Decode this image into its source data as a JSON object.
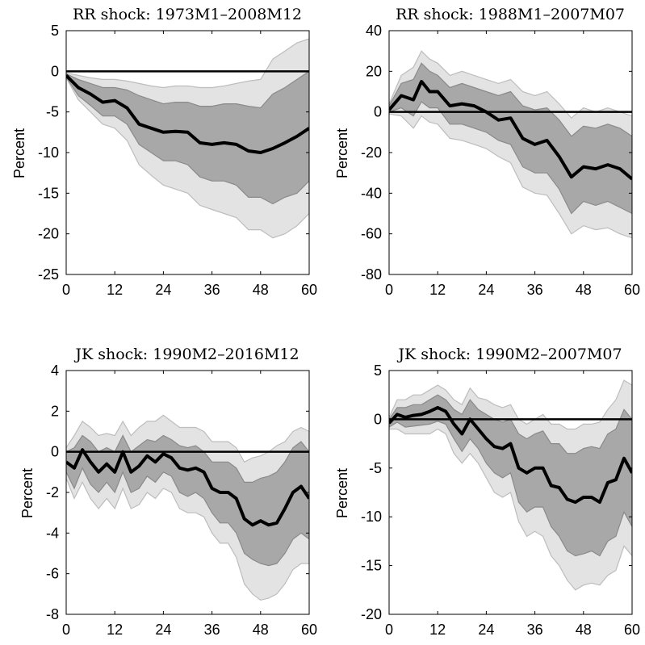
{
  "chart_data": [
    {
      "type": "line",
      "title": "RR shock: 1973M1–2008M12",
      "ylabel": "Percent",
      "xlabel": "",
      "xlim": [
        0,
        60
      ],
      "ylim": [
        -25,
        5
      ],
      "xticks": [
        0,
        12,
        24,
        36,
        48,
        60
      ],
      "yticks": [
        5,
        0,
        -5,
        -10,
        -15,
        -20,
        -25
      ],
      "zero_line": true,
      "x": [
        0,
        3,
        6,
        9,
        12,
        15,
        18,
        21,
        24,
        27,
        30,
        33,
        36,
        39,
        42,
        45,
        48,
        51,
        54,
        57,
        60
      ],
      "series": [
        {
          "role": "point_estimate",
          "values": [
            -0.5,
            -2.0,
            -2.8,
            -3.8,
            -3.6,
            -4.5,
            -6.5,
            -7.0,
            -7.5,
            -7.4,
            -7.5,
            -8.8,
            -9.0,
            -8.8,
            -9.0,
            -9.8,
            -10.0,
            -9.5,
            -8.8,
            -8.0,
            -7.0
          ]
        },
        {
          "role": "inner_band_upper",
          "values": [
            -0.3,
            -1.0,
            -1.5,
            -2.0,
            -2.0,
            -2.3,
            -3.0,
            -3.5,
            -4.0,
            -3.8,
            -3.8,
            -4.3,
            -4.3,
            -4.0,
            -4.0,
            -4.3,
            -4.5,
            -2.8,
            -2.0,
            -1.0,
            0.0
          ]
        },
        {
          "role": "inner_band_lower",
          "values": [
            -0.7,
            -3.0,
            -4.2,
            -5.5,
            -5.5,
            -6.5,
            -9.0,
            -10.0,
            -11.0,
            -11.0,
            -11.5,
            -13.0,
            -13.5,
            -13.5,
            -14.0,
            -15.5,
            -15.5,
            -16.3,
            -15.5,
            -15.0,
            -13.5
          ]
        },
        {
          "role": "outer_band_upper",
          "values": [
            -0.2,
            -0.5,
            -0.8,
            -1.0,
            -1.0,
            -1.2,
            -1.5,
            -1.8,
            -2.0,
            -1.8,
            -1.8,
            -2.0,
            -2.0,
            -1.8,
            -1.5,
            -1.2,
            -1.0,
            1.5,
            2.5,
            3.5,
            4.0
          ]
        },
        {
          "role": "outer_band_lower",
          "values": [
            -0.8,
            -3.5,
            -5.0,
            -6.5,
            -7.0,
            -8.5,
            -11.5,
            -12.8,
            -14.0,
            -14.5,
            -15.0,
            -16.5,
            -17.0,
            -17.5,
            -18.0,
            -19.5,
            -19.5,
            -20.5,
            -20.0,
            -19.0,
            -17.5
          ]
        }
      ]
    },
    {
      "type": "line",
      "title": "RR shock: 1988M1–2007M07",
      "ylabel": "Percent",
      "xlabel": "",
      "xlim": [
        0,
        60
      ],
      "ylim": [
        -80,
        40
      ],
      "xticks": [
        0,
        12,
        24,
        36,
        48,
        60
      ],
      "yticks": [
        40,
        20,
        0,
        -20,
        -40,
        -60,
        -80
      ],
      "zero_line": true,
      "x": [
        0,
        3,
        6,
        8,
        10,
        12,
        15,
        18,
        21,
        24,
        27,
        30,
        33,
        36,
        39,
        42,
        45,
        48,
        51,
        54,
        57,
        60
      ],
      "series": [
        {
          "role": "point_estimate",
          "values": [
            1,
            8,
            6,
            15,
            10,
            10,
            3,
            4,
            3,
            0,
            -4,
            -3,
            -13,
            -16,
            -14,
            -22,
            -32,
            -27,
            -28,
            -26,
            -28,
            -33
          ]
        },
        {
          "role": "inner_band_upper",
          "values": [
            3,
            14,
            16,
            24,
            20,
            18,
            12,
            14,
            12,
            10,
            8,
            10,
            3,
            1,
            2,
            -4,
            -12,
            -7,
            -8,
            -6,
            -8,
            -12
          ]
        },
        {
          "role": "inner_band_lower",
          "values": [
            0,
            2,
            -2,
            5,
            2,
            2,
            -6,
            -6,
            -8,
            -10,
            -14,
            -16,
            -27,
            -30,
            -30,
            -38,
            -50,
            -44,
            -46,
            -44,
            -47,
            -50
          ]
        },
        {
          "role": "outer_band_upper",
          "values": [
            4,
            18,
            22,
            30,
            26,
            24,
            18,
            20,
            18,
            16,
            14,
            16,
            10,
            8,
            10,
            4,
            -3,
            2,
            0,
            2,
            0,
            -2
          ]
        },
        {
          "role": "outer_band_lower",
          "values": [
            -1,
            -2,
            -8,
            -2,
            -5,
            -6,
            -13,
            -14,
            -16,
            -18,
            -22,
            -25,
            -37,
            -40,
            -41,
            -50,
            -60,
            -56,
            -58,
            -57,
            -60,
            -62
          ]
        }
      ]
    },
    {
      "type": "line",
      "title": "JK shock: 1990M2–2016M12",
      "ylabel": "Percent",
      "xlabel": "",
      "xlim": [
        0,
        60
      ],
      "ylim": [
        -8,
        4
      ],
      "xticks": [
        0,
        12,
        24,
        36,
        48,
        60
      ],
      "yticks": [
        4,
        2,
        0,
        -2,
        -4,
        -6,
        -8
      ],
      "zero_line": true,
      "x": [
        0,
        2,
        4,
        6,
        8,
        10,
        12,
        14,
        16,
        18,
        20,
        22,
        24,
        26,
        28,
        30,
        32,
        34,
        36,
        38,
        40,
        42,
        44,
        46,
        48,
        50,
        52,
        54,
        56,
        58,
        60
      ],
      "series": [
        {
          "role": "point_estimate",
          "values": [
            -0.5,
            -0.8,
            0.1,
            -0.5,
            -1.0,
            -0.6,
            -1.0,
            0.0,
            -1.0,
            -0.7,
            -0.2,
            -0.5,
            -0.1,
            -0.3,
            -0.8,
            -0.9,
            -0.8,
            -1.0,
            -1.8,
            -2.0,
            -2.0,
            -2.3,
            -3.3,
            -3.6,
            -3.4,
            -3.6,
            -3.5,
            -2.8,
            -2.0,
            -1.7,
            -2.3
          ]
        },
        {
          "role": "inner_band_upper",
          "values": [
            0.0,
            0.2,
            0.8,
            0.5,
            0.0,
            0.2,
            0.0,
            0.8,
            0.0,
            0.3,
            0.6,
            0.5,
            0.8,
            0.6,
            0.3,
            0.2,
            0.3,
            0.0,
            -0.5,
            -0.5,
            -0.5,
            -0.8,
            -1.5,
            -1.5,
            -1.3,
            -1.2,
            -1.0,
            -0.5,
            0.2,
            0.5,
            0.0
          ]
        },
        {
          "role": "inner_band_lower",
          "values": [
            -1.0,
            -1.8,
            -0.8,
            -1.6,
            -2.0,
            -1.5,
            -2.0,
            -1.0,
            -2.0,
            -1.8,
            -1.2,
            -1.5,
            -1.0,
            -1.2,
            -2.0,
            -2.2,
            -2.0,
            -2.3,
            -3.0,
            -3.5,
            -3.5,
            -4.0,
            -5.0,
            -5.3,
            -5.5,
            -5.6,
            -5.5,
            -5.0,
            -4.3,
            -4.0,
            -4.3
          ]
        },
        {
          "role": "outer_band_upper",
          "values": [
            0.2,
            0.8,
            1.5,
            1.2,
            0.8,
            0.9,
            0.8,
            1.5,
            0.8,
            1.2,
            1.5,
            1.5,
            1.8,
            1.5,
            1.2,
            1.2,
            1.2,
            1.0,
            0.5,
            0.5,
            0.5,
            0.2,
            -0.5,
            -0.3,
            -0.2,
            0.0,
            0.3,
            0.5,
            1.0,
            1.2,
            1.0
          ]
        },
        {
          "role": "outer_band_lower",
          "values": [
            -1.3,
            -2.3,
            -1.5,
            -2.3,
            -2.8,
            -2.3,
            -2.8,
            -1.8,
            -2.8,
            -2.6,
            -2.0,
            -2.3,
            -1.8,
            -2.0,
            -2.8,
            -3.0,
            -3.0,
            -3.2,
            -4.0,
            -4.5,
            -4.5,
            -5.2,
            -6.5,
            -7.0,
            -7.3,
            -7.2,
            -7.0,
            -6.5,
            -5.8,
            -5.5,
            -5.5
          ]
        }
      ]
    },
    {
      "type": "line",
      "title": "JK shock: 1990M2–2007M07",
      "ylabel": "Percent",
      "xlabel": "",
      "xlim": [
        0,
        60
      ],
      "ylim": [
        -20,
        5
      ],
      "xticks": [
        0,
        12,
        24,
        36,
        48,
        60
      ],
      "yticks": [
        5,
        0,
        -5,
        -10,
        -15,
        -20
      ],
      "zero_line": true,
      "x": [
        0,
        2,
        4,
        6,
        8,
        10,
        12,
        14,
        16,
        18,
        20,
        22,
        24,
        26,
        28,
        30,
        32,
        34,
        36,
        38,
        40,
        42,
        44,
        46,
        48,
        50,
        52,
        54,
        56,
        58,
        60
      ],
      "series": [
        {
          "role": "point_estimate",
          "values": [
            -0.4,
            0.5,
            0.2,
            0.4,
            0.5,
            0.8,
            1.2,
            0.8,
            -0.5,
            -1.5,
            0.0,
            -1.0,
            -2.0,
            -2.8,
            -3.0,
            -2.5,
            -5.0,
            -5.5,
            -5.0,
            -5.0,
            -6.8,
            -7.0,
            -8.2,
            -8.5,
            -8.0,
            -8.0,
            -8.5,
            -6.5,
            -6.2,
            -4.0,
            -5.5
          ]
        },
        {
          "role": "inner_band_upper",
          "values": [
            0.0,
            1.2,
            1.2,
            1.5,
            1.5,
            2.0,
            2.5,
            2.0,
            1.0,
            0.5,
            2.0,
            1.0,
            0.5,
            0.0,
            -0.3,
            0.0,
            -1.5,
            -2.0,
            -1.5,
            -1.2,
            -2.5,
            -2.5,
            -3.5,
            -3.5,
            -3.0,
            -2.8,
            -3.0,
            -1.5,
            -1.0,
            1.0,
            0.0
          ]
        },
        {
          "role": "inner_band_lower",
          "values": [
            -0.8,
            -0.3,
            -0.8,
            -0.7,
            -0.6,
            -0.5,
            -0.2,
            -0.5,
            -2.0,
            -3.3,
            -2.0,
            -3.0,
            -4.5,
            -5.5,
            -6.0,
            -5.5,
            -8.5,
            -9.5,
            -9.0,
            -9.0,
            -11.0,
            -12.0,
            -13.5,
            -14.0,
            -13.8,
            -13.5,
            -14.0,
            -12.5,
            -12.0,
            -9.5,
            -11.0
          ]
        },
        {
          "role": "outer_band_upper",
          "values": [
            0.2,
            2.0,
            2.0,
            2.5,
            2.5,
            3.0,
            3.5,
            3.0,
            2.0,
            1.5,
            3.2,
            2.2,
            2.0,
            1.5,
            1.2,
            1.5,
            0.0,
            -0.5,
            0.0,
            0.5,
            -0.5,
            -0.5,
            -1.0,
            -1.0,
            -0.5,
            -0.5,
            -0.3,
            1.0,
            2.0,
            4.0,
            3.5
          ]
        },
        {
          "role": "outer_band_lower",
          "values": [
            -1.0,
            -1.0,
            -1.5,
            -1.5,
            -1.5,
            -1.5,
            -1.0,
            -1.5,
            -3.5,
            -4.5,
            -3.5,
            -4.5,
            -6.0,
            -7.5,
            -8.0,
            -7.5,
            -10.5,
            -12.0,
            -11.5,
            -12.0,
            -14.0,
            -15.0,
            -16.5,
            -17.5,
            -17.0,
            -16.8,
            -17.0,
            -16.0,
            -15.5,
            -13.0,
            -14.0
          ]
        }
      ]
    }
  ]
}
